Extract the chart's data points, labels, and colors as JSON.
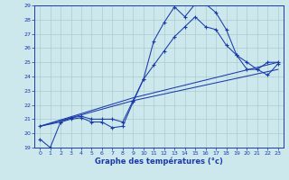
{
  "xlabel": "Graphe des températures (°c)",
  "xlim": [
    -0.5,
    23.5
  ],
  "ylim": [
    19,
    29
  ],
  "xticks": [
    0,
    1,
    2,
    3,
    4,
    5,
    6,
    7,
    8,
    9,
    10,
    11,
    12,
    13,
    14,
    15,
    16,
    17,
    18,
    19,
    20,
    21,
    22,
    23
  ],
  "yticks": [
    19,
    20,
    21,
    22,
    23,
    24,
    25,
    26,
    27,
    28,
    29
  ],
  "bg_color": "#cce8ec",
  "grid_color": "#aacccc",
  "line_color": "#1a3aaa",
  "line1_x": [
    0,
    1,
    2,
    3,
    4,
    5,
    6,
    7,
    8,
    9,
    10,
    11,
    12,
    13,
    14,
    15,
    16,
    17,
    18,
    19,
    20,
    21,
    22,
    23
  ],
  "line1_y": [
    19.6,
    19.0,
    20.8,
    21.0,
    21.1,
    20.8,
    20.8,
    20.4,
    20.5,
    22.2,
    23.8,
    26.5,
    27.8,
    28.9,
    28.2,
    29.1,
    29.1,
    28.5,
    27.3,
    25.5,
    24.5,
    24.5,
    24.1,
    24.9
  ],
  "line2_x": [
    0,
    2,
    3,
    4,
    5,
    6,
    7,
    8,
    9,
    10,
    11,
    12,
    13,
    14,
    15,
    16,
    17,
    18,
    19,
    20,
    21,
    22,
    23
  ],
  "line2_y": [
    20.5,
    20.8,
    21.1,
    21.2,
    21.0,
    21.0,
    21.0,
    20.8,
    22.3,
    23.8,
    24.8,
    25.8,
    26.8,
    27.5,
    28.2,
    27.5,
    27.3,
    26.2,
    25.5,
    25.0,
    24.5,
    25.0,
    25.0
  ],
  "line3_x": [
    0,
    9,
    23
  ],
  "line3_y": [
    20.5,
    22.3,
    24.5
  ],
  "line4_x": [
    0,
    9,
    23
  ],
  "line4_y": [
    20.5,
    22.5,
    25.0
  ]
}
